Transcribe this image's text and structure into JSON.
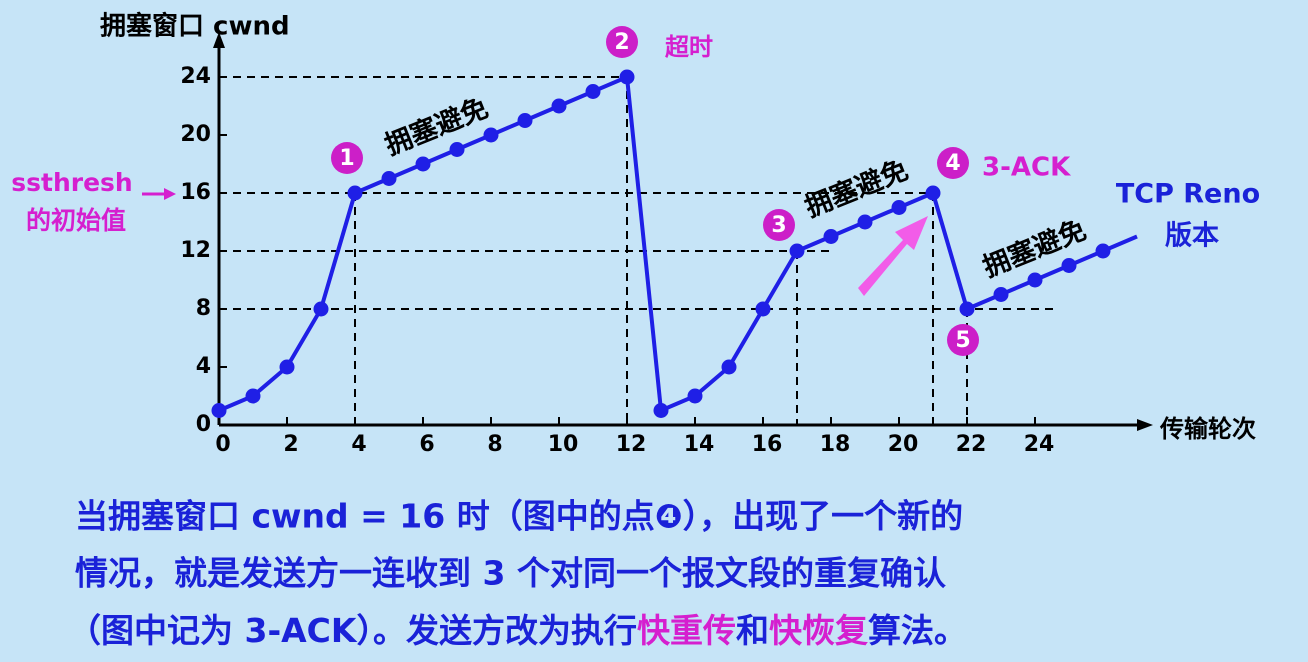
{
  "chart_data": {
    "type": "line",
    "y_label": "拥塞窗口  cwnd",
    "x_label": "传输轮次",
    "x": [
      0,
      1,
      2,
      3,
      4,
      5,
      6,
      7,
      8,
      9,
      10,
      11,
      12,
      13,
      14,
      15,
      16,
      17,
      18,
      19,
      20,
      21,
      22,
      23,
      24,
      25,
      26
    ],
    "series": [
      {
        "name": "cwnd",
        "color": "#1f1fe6",
        "values": [
          1,
          2,
          4,
          8,
          16,
          17,
          18,
          19,
          20,
          21,
          22,
          23,
          24,
          1,
          2,
          4,
          8,
          12,
          13,
          14,
          15,
          16,
          8,
          9,
          10,
          11,
          12
        ]
      }
    ],
    "xlim": [
      0,
      27
    ],
    "ylim": [
      0,
      26
    ],
    "xticks": [
      0,
      2,
      4,
      6,
      8,
      10,
      12,
      14,
      16,
      18,
      20,
      22,
      24
    ],
    "yticks": [
      0,
      4,
      8,
      12,
      16,
      20,
      24
    ],
    "markers": [
      "1",
      "2",
      "3",
      "4",
      "5"
    ],
    "annotations": {
      "timeout": "超时",
      "three_ack": "3-ACK",
      "reno": "TCP Reno",
      "reno_version": "版本",
      "avoid": [
        "拥塞避免",
        "拥塞避免",
        "拥塞避免"
      ],
      "ssthresh": "ssthresh",
      "ssthresh_note": "的初始值"
    }
  },
  "caption": {
    "line1": "当拥塞窗口 cwnd = 16 时（图中的点❹），出现了一个新的",
    "line2": "情况，就是发送方一连收到 3 个对同一个报文段的重复确认",
    "line3": [
      "（图中记为 3-ACK）。发送方改为执行",
      "快重传",
      "和",
      "快恢复",
      "算法。"
    ]
  }
}
